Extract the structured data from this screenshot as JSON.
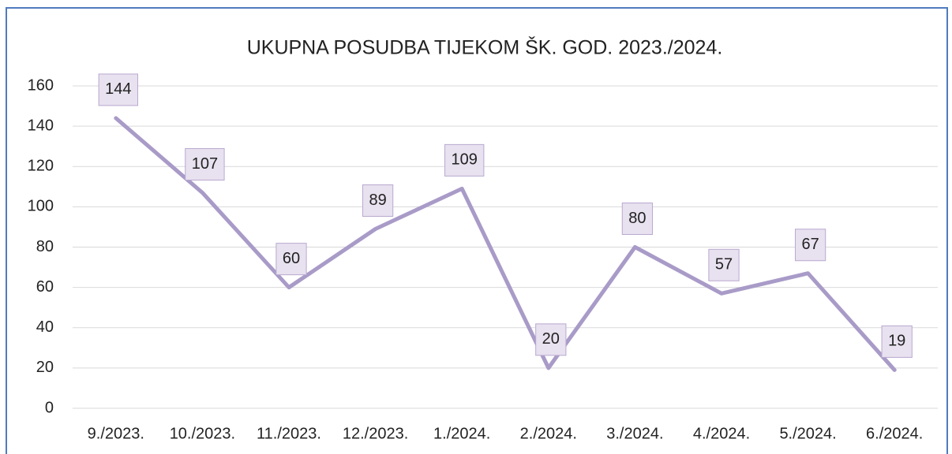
{
  "chart_data": {
    "type": "line",
    "title": "UKUPNA POSUDBA TIJEKOM ŠK. GOD. 2023./2024.",
    "categories": [
      "9./2023.",
      "10./2023.",
      "11./2023.",
      "12./2023.",
      "1./2024.",
      "2./2024.",
      "3./2024.",
      "4./2024.",
      "5./2024.",
      "6./2024."
    ],
    "values": [
      144,
      107,
      60,
      89,
      109,
      20,
      80,
      57,
      67,
      19
    ],
    "color": "#a99bc8",
    "ylim": [
      0,
      160
    ],
    "yticks": [
      0,
      20,
      40,
      60,
      80,
      100,
      120,
      140,
      160
    ],
    "grid": true
  }
}
